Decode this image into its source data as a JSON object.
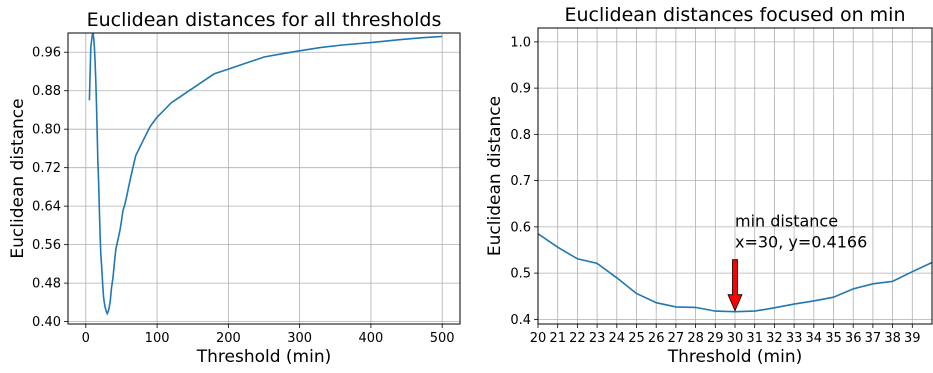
{
  "chart_data": [
    {
      "type": "line",
      "title": "Euclidean distances for all thresholds",
      "xlabel": "Threshold (min)",
      "ylabel": "Euclidean distance",
      "xlim": [
        -25,
        525
      ],
      "ylim": [
        0.395,
        1.0
      ],
      "xticks": [
        0,
        100,
        200,
        300,
        400,
        500
      ],
      "yticks": [
        0.4,
        0.48,
        0.56,
        0.64,
        0.72,
        0.8,
        0.88,
        0.96
      ],
      "ytick_labels": [
        "0.40",
        "0.48",
        "0.56",
        "0.64",
        "0.72",
        "0.80",
        "0.88",
        "0.96"
      ],
      "grid": true,
      "color": "#1f77b4",
      "series": [
        {
          "x": [
            5,
            7,
            9,
            10,
            11,
            12,
            13,
            14,
            15,
            16,
            17,
            18,
            19,
            20,
            21,
            22,
            24,
            25,
            26,
            27,
            28,
            29,
            30,
            32,
            34,
            36,
            38,
            40,
            42,
            45,
            48,
            50,
            52,
            55,
            58,
            60,
            63,
            66,
            70,
            75,
            80,
            85,
            90,
            95,
            100,
            110,
            120,
            130,
            140,
            150,
            165,
            180,
            200,
            220,
            250,
            280,
            300,
            330,
            360,
            400,
            440,
            470,
            500
          ],
          "y": [
            0.86,
            0.97,
            0.995,
            1.0,
            0.99,
            0.97,
            0.94,
            0.9,
            0.85,
            0.79,
            0.73,
            0.69,
            0.63,
            0.58,
            0.54,
            0.52,
            0.47,
            0.45,
            0.44,
            0.43,
            0.425,
            0.42,
            0.4166,
            0.423,
            0.44,
            0.47,
            0.49,
            0.52,
            0.55,
            0.57,
            0.59,
            0.61,
            0.63,
            0.645,
            0.665,
            0.68,
            0.7,
            0.72,
            0.745,
            0.76,
            0.775,
            0.79,
            0.805,
            0.815,
            0.825,
            0.84,
            0.855,
            0.865,
            0.875,
            0.885,
            0.9,
            0.915,
            0.925,
            0.935,
            0.95,
            0.958,
            0.963,
            0.97,
            0.975,
            0.98,
            0.986,
            0.99,
            0.993
          ]
        }
      ]
    },
    {
      "type": "line",
      "title": "Euclidean distances focused on min",
      "xlabel": "Threshold (min)",
      "ylabel": "Euclidean distance",
      "xlim": [
        20,
        40
      ],
      "ylim": [
        0.39,
        1.03
      ],
      "xticks": [
        20,
        21,
        22,
        23,
        24,
        25,
        26,
        27,
        28,
        29,
        30,
        31,
        32,
        33,
        34,
        35,
        36,
        37,
        38,
        39
      ],
      "yticks": [
        0.4,
        0.5,
        0.6,
        0.7,
        0.8,
        0.9,
        1.0
      ],
      "ytick_labels": [
        "0.4",
        "0.5",
        "0.6",
        "0.7",
        "0.8",
        "0.9",
        "1.0"
      ],
      "grid": true,
      "color": "#1f77b4",
      "series": [
        {
          "x": [
            20,
            21,
            22,
            23,
            24,
            25,
            26,
            27,
            28,
            29,
            30,
            31,
            32,
            33,
            34,
            35,
            36,
            37,
            38,
            39,
            40
          ],
          "y": [
            0.585,
            0.556,
            0.531,
            0.521,
            0.49,
            0.456,
            0.436,
            0.427,
            0.426,
            0.418,
            0.4166,
            0.418,
            0.425,
            0.433,
            0.44,
            0.448,
            0.466,
            0.477,
            0.482,
            0.503,
            0.523
          ]
        }
      ],
      "annotation": {
        "line1": "min distance",
        "line2": "x=30, y=0.4166",
        "point_x": 30,
        "point_y": 0.4166,
        "arrow_color": "#ff0000"
      }
    }
  ]
}
